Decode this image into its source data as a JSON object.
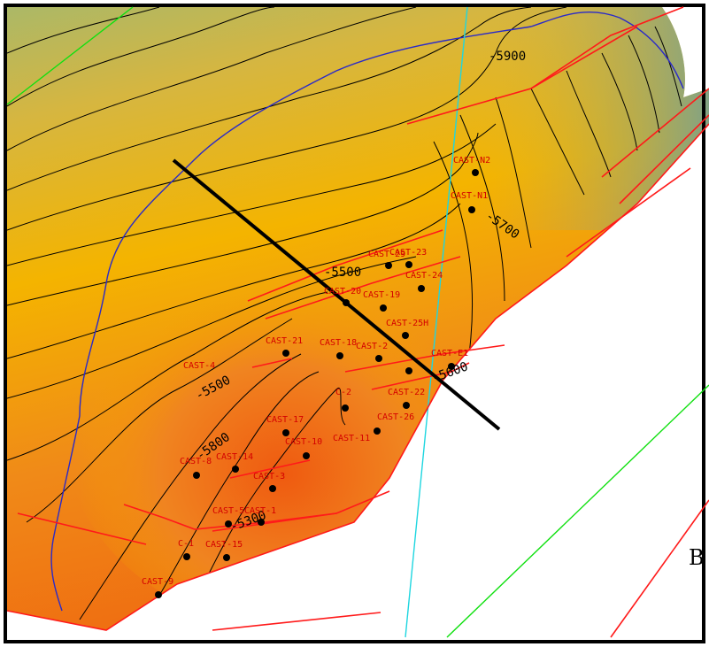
{
  "map": {
    "corner_letter": "B",
    "colors": {
      "fault": "#ff1a1a",
      "contour": "#000000",
      "well": "#000000",
      "well_label": "#d40000",
      "blue_line": "#2a2ac8",
      "cyan_line": "#1fd6e0",
      "green_line": "#10e010",
      "section_line": "#000000",
      "surface_deep": "#d9a33a",
      "surface_mid": "#f4b400",
      "surface_shallow": "#ef6a10"
    },
    "contour_labels": [
      "-5900",
      "-5700",
      "-5500",
      "-5500",
      "-5800",
      "-5300",
      "-5600"
    ],
    "wells": [
      {
        "id": "N2",
        "label": "CAST-N2"
      },
      {
        "id": "N1",
        "label": "CAST-N1"
      },
      {
        "id": "23",
        "label": "CAST-23"
      },
      {
        "id": "29",
        "label": "CAST-29"
      },
      {
        "id": "24",
        "label": "CAST-24"
      },
      {
        "id": "20",
        "label": "CAST-20"
      },
      {
        "id": "19",
        "label": "CAST-19"
      },
      {
        "id": "25H",
        "label": "CAST-25H"
      },
      {
        "id": "21",
        "label": "CAST-21"
      },
      {
        "id": "18",
        "label": "CAST-18"
      },
      {
        "id": "2x",
        "label": "CAST-2"
      },
      {
        "id": "E1",
        "label": "CAST-E1"
      },
      {
        "id": "4",
        "label": "CAST-4"
      },
      {
        "id": "22",
        "label": "CAST-22"
      },
      {
        "id": "C2",
        "label": "C-2"
      },
      {
        "id": "26",
        "label": "CAST-26"
      },
      {
        "id": "17",
        "label": "CAST-17"
      },
      {
        "id": "11",
        "label": "CAST-11"
      },
      {
        "id": "10",
        "label": "CAST-10"
      },
      {
        "id": "8",
        "label": "CAST-8"
      },
      {
        "id": "14",
        "label": "CAST-14"
      },
      {
        "id": "3",
        "label": "CAST-3"
      },
      {
        "id": "5",
        "label": "CAST-5"
      },
      {
        "id": "1",
        "label": "CAST-1"
      },
      {
        "id": "C1",
        "label": "C-1"
      },
      {
        "id": "15",
        "label": "CAST-15"
      },
      {
        "id": "9",
        "label": "CAST-9"
      }
    ]
  }
}
